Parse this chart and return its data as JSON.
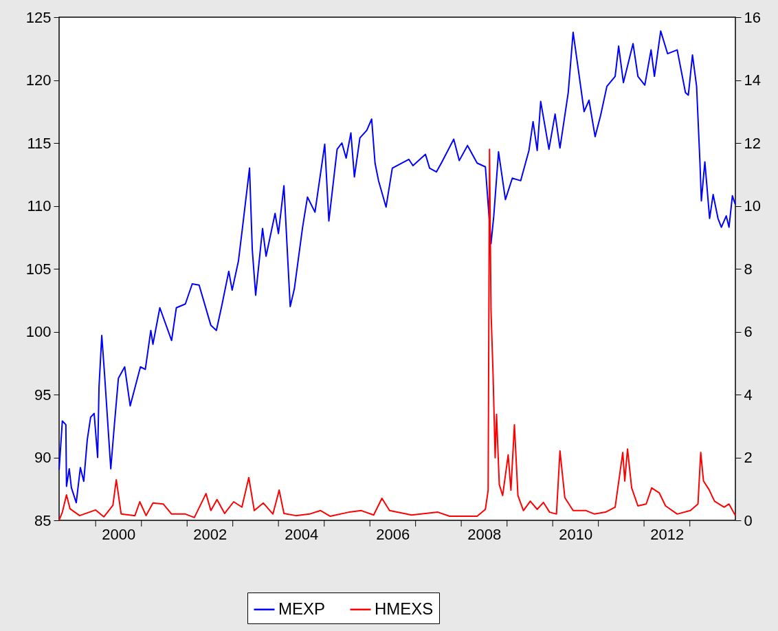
{
  "chart_data": {
    "type": "line",
    "legend": "bottom",
    "grid": false,
    "xlim": [
      "1999-03-15",
      "2013-12-31"
    ],
    "xticks": [
      {
        "value": "2000-01-01",
        "label": null
      },
      {
        "value": "2000-07-01",
        "label": "2000"
      },
      {
        "value": "2001-01-01",
        "label": null
      },
      {
        "value": "2002-01-01",
        "label": null
      },
      {
        "value": "2002-07-01",
        "label": "2002"
      },
      {
        "value": "2003-01-01",
        "label": null
      },
      {
        "value": "2004-01-01",
        "label": null
      },
      {
        "value": "2004-07-01",
        "label": "2004"
      },
      {
        "value": "2005-01-01",
        "label": null
      },
      {
        "value": "2006-01-01",
        "label": null
      },
      {
        "value": "2006-07-01",
        "label": "2006"
      },
      {
        "value": "2007-01-01",
        "label": null
      },
      {
        "value": "2008-01-01",
        "label": null
      },
      {
        "value": "2008-07-01",
        "label": "2008"
      },
      {
        "value": "2009-01-01",
        "label": null
      },
      {
        "value": "2010-01-01",
        "label": null
      },
      {
        "value": "2010-07-01",
        "label": "2010"
      },
      {
        "value": "2011-01-01",
        "label": null
      },
      {
        "value": "2012-01-01",
        "label": null
      },
      {
        "value": "2012-07-01",
        "label": "2012"
      },
      {
        "value": "2013-01-01",
        "label": null
      }
    ],
    "ylim": [
      85,
      125
    ],
    "yticks": [
      85,
      90,
      95,
      100,
      105,
      110,
      115,
      120,
      125
    ],
    "y2lim": [
      0,
      16
    ],
    "y2ticks": [
      0,
      2,
      4,
      6,
      8,
      10,
      12,
      14,
      16
    ],
    "series": [
      {
        "name": "MEXP",
        "color": "#0000ff",
        "x": [
          "1999-03-15",
          "1999-04-10",
          "1999-05-08",
          "1999-05-13",
          "1999-06-04",
          "1999-06-21",
          "1999-07-30",
          "1999-09-01",
          "1999-09-28",
          "1999-10-26",
          "1999-11-22",
          "1999-12-20",
          "2000-01-17",
          "2000-01-28",
          "2000-02-19",
          "2000-03-13",
          "2000-05-01",
          "2000-05-29",
          "2000-07-01",
          "2000-08-20",
          "2000-10-03",
          "2000-12-24",
          "2001-02-01",
          "2001-03-17",
          "2001-04-03",
          "2001-05-28",
          "2001-08-30",
          "2001-10-07",
          "2001-12-18",
          "2002-02-11",
          "2002-04-07",
          "2002-07-10",
          "2002-08-23",
          "2002-10-06",
          "2002-11-30",
          "2002-12-27",
          "2003-02-15",
          "2003-03-20",
          "2003-05-15",
          "2003-06-06",
          "2003-07-03",
          "2003-08-27",
          "2003-09-24",
          "2003-12-05",
          "2004-01-01",
          "2004-02-14",
          "2004-04-04",
          "2004-05-07",
          "2004-07-12",
          "2004-08-20",
          "2004-10-19",
          "2005-01-05",
          "2005-02-07",
          "2005-04-14",
          "2005-05-22",
          "2005-06-25",
          "2005-08-02",
          "2005-08-30",
          "2005-10-13",
          "2005-12-07",
          "2006-01-15",
          "2006-02-11",
          "2006-03-11",
          "2006-05-10",
          "2006-06-29",
          "2006-11-08",
          "2006-12-11",
          "2007-03-21",
          "2007-04-23",
          "2007-06-17",
          "2007-07-31",
          "2007-11-02",
          "2007-12-16",
          "2008-02-20",
          "2008-05-07",
          "2008-07-12",
          "2008-08-26",
          "2008-09-17",
          "2008-10-25",
          "2008-12-19",
          "2009-02-12",
          "2009-04-20",
          "2009-06-25",
          "2009-07-28",
          "2009-08-30",
          "2009-09-27",
          "2009-12-02",
          "2010-01-20",
          "2010-02-28",
          "2010-05-05",
          "2010-06-13",
          "2010-07-21",
          "2010-09-09",
          "2010-10-18",
          "2010-12-06",
          "2011-01-19",
          "2011-03-10",
          "2011-05-15",
          "2011-06-12",
          "2011-07-20",
          "2011-10-05",
          "2011-11-13",
          "2012-01-07",
          "2012-02-26",
          "2012-03-24",
          "2012-05-13",
          "2012-07-07",
          "2012-09-22",
          "2012-11-27",
          "2012-12-20",
          "2013-01-22",
          "2013-02-24",
          "2013-03-23",
          "2013-04-03",
          "2013-05-01",
          "2013-06-08",
          "2013-07-06",
          "2013-08-14",
          "2013-09-10",
          "2013-10-19",
          "2013-11-10",
          "2013-12-07",
          "2013-12-31"
        ],
        "values": [
          89.0,
          92.9,
          92.6,
          87.7,
          89.1,
          87.6,
          86.4,
          89.2,
          88.1,
          91.4,
          93.2,
          93.5,
          90.0,
          95.6,
          99.7,
          96.5,
          89.1,
          92.5,
          96.3,
          97.2,
          94.1,
          97.2,
          97.0,
          100.1,
          99.0,
          101.9,
          99.3,
          101.9,
          102.2,
          103.8,
          103.7,
          100.5,
          100.1,
          102.1,
          104.8,
          103.3,
          105.6,
          108.3,
          113.0,
          106.5,
          102.9,
          108.2,
          106.0,
          109.4,
          107.8,
          111.6,
          102.0,
          103.4,
          108.3,
          110.7,
          109.5,
          114.9,
          108.8,
          114.5,
          115.0,
          113.8,
          115.8,
          112.3,
          115.4,
          116.0,
          116.9,
          113.4,
          112.0,
          109.9,
          113.0,
          113.7,
          113.2,
          114.1,
          113.0,
          112.7,
          113.5,
          115.3,
          113.6,
          114.8,
          113.4,
          113.1,
          107.0,
          109.2,
          114.3,
          110.5,
          112.2,
          112.0,
          114.4,
          116.7,
          114.4,
          118.3,
          114.5,
          117.3,
          114.6,
          119.0,
          123.8,
          121.1,
          117.5,
          118.4,
          115.5,
          117.2,
          119.5,
          120.3,
          122.7,
          119.8,
          122.9,
          120.3,
          119.6,
          122.4,
          120.3,
          123.9,
          122.1,
          122.4,
          119.0,
          118.8,
          122.0,
          119.5,
          113.4,
          110.4,
          113.5,
          109.0,
          110.9,
          109.0,
          108.3,
          109.2,
          108.3,
          110.8,
          110.1
        ]
      },
      {
        "name": "HMEXS",
        "color": "#ff0000",
        "axis": "y2",
        "x": [
          "1999-03-15",
          "1999-04-10",
          "1999-05-13",
          "1999-06-10",
          "1999-08-26",
          "2000-01-01",
          "2000-03-07",
          "2000-05-18",
          "2000-06-14",
          "2000-07-23",
          "2000-11-10",
          "2000-12-19",
          "2001-02-07",
          "2001-04-03",
          "2001-06-24",
          "2001-08-30",
          "2001-12-18",
          "2002-02-28",
          "2002-06-01",
          "2002-07-10",
          "2002-08-28",
          "2002-10-28",
          "2003-01-08",
          "2003-03-15",
          "2003-05-09",
          "2003-06-22",
          "2003-09-02",
          "2003-11-18",
          "2004-01-07",
          "2004-02-14",
          "2004-05-18",
          "2004-09-05",
          "2004-12-03",
          "2005-02-18",
          "2005-07-17",
          "2005-10-24",
          "2006-01-31",
          "2006-04-07",
          "2006-06-07",
          "2006-11-30",
          "2007-06-28",
          "2007-09-30",
          "2008-05-07",
          "2008-07-12",
          "2008-08-03",
          "2008-08-14",
          "2008-08-26",
          "2008-09-11",
          "2008-09-28",
          "2008-10-09",
          "2008-10-31",
          "2008-11-27",
          "2009-01-10",
          "2009-02-01",
          "2009-03-01",
          "2009-03-29",
          "2009-05-12",
          "2009-07-06",
          "2009-08-30",
          "2009-10-19",
          "2009-12-07",
          "2010-01-31",
          "2010-02-28",
          "2010-04-08",
          "2010-06-13",
          "2010-09-25",
          "2010-12-01",
          "2011-02-27",
          "2011-05-15",
          "2011-07-15",
          "2011-07-31",
          "2011-08-22",
          "2011-09-24",
          "2011-11-13",
          "2012-01-18",
          "2012-03-02",
          "2012-05-02",
          "2012-06-21",
          "2012-09-22",
          "2013-01-05",
          "2013-03-07",
          "2013-03-29",
          "2013-04-20",
          "2013-06-03",
          "2013-07-17",
          "2013-10-02",
          "2013-11-10",
          "2013-12-31"
        ],
        "values": [
          0.0,
          0.26,
          0.81,
          0.37,
          0.15,
          0.33,
          0.11,
          0.48,
          1.29,
          0.2,
          0.15,
          0.59,
          0.15,
          0.55,
          0.52,
          0.2,
          0.2,
          0.09,
          0.85,
          0.31,
          0.66,
          0.22,
          0.59,
          0.42,
          1.36,
          0.31,
          0.55,
          0.2,
          0.96,
          0.22,
          0.15,
          0.2,
          0.31,
          0.13,
          0.26,
          0.31,
          0.17,
          0.7,
          0.31,
          0.17,
          0.26,
          0.13,
          0.13,
          0.35,
          0.96,
          11.8,
          6.67,
          4.68,
          1.99,
          3.37,
          1.14,
          0.79,
          2.08,
          0.96,
          3.04,
          0.79,
          0.31,
          0.61,
          0.35,
          0.57,
          0.26,
          0.2,
          2.21,
          0.72,
          0.31,
          0.31,
          0.2,
          0.26,
          0.42,
          2.16,
          1.25,
          2.27,
          1.03,
          0.46,
          0.52,
          1.03,
          0.87,
          0.46,
          0.2,
          0.31,
          0.52,
          2.16,
          1.25,
          0.98,
          0.61,
          0.42,
          0.52,
          0.15
        ]
      }
    ]
  }
}
